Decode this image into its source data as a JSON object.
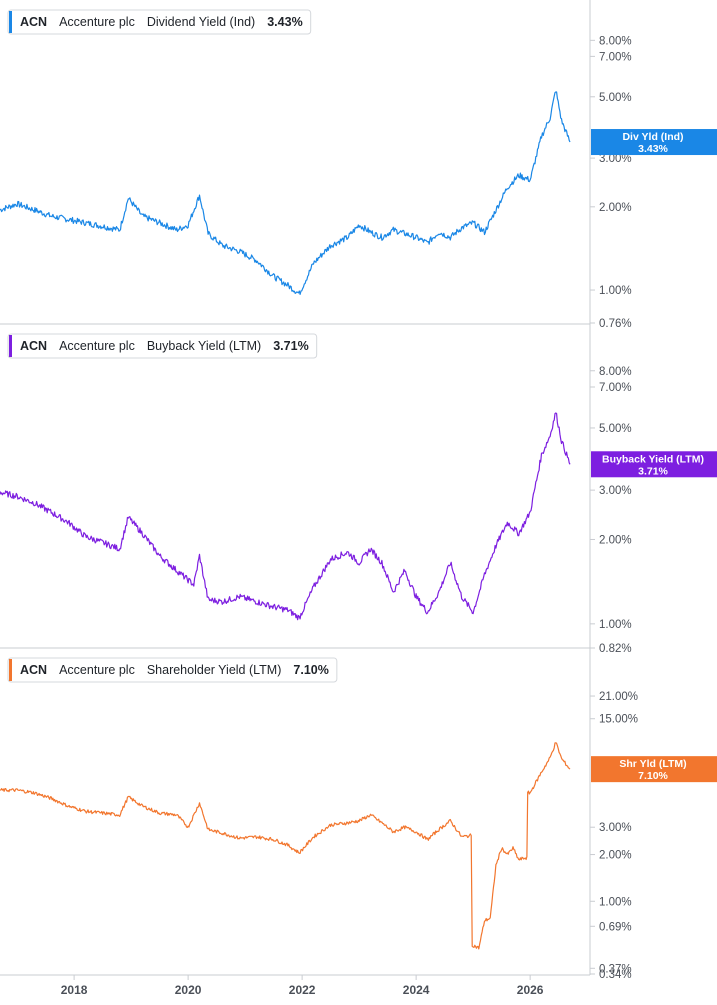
{
  "chart_data": [
    {
      "type": "line",
      "ticker": "ACN",
      "company": "Accenture plc",
      "metric": "Dividend Yield (Ind)",
      "current_value_label": "3.43%",
      "tag_label": "Div Yld (Ind)",
      "color": "#1a87e6",
      "scale": "log",
      "ylim": [
        0.76,
        10.3
      ],
      "yticks": [
        {
          "value": 8.0,
          "label": "8.00%"
        },
        {
          "value": 7.0,
          "label": "7.00%"
        },
        {
          "value": 5.0,
          "label": "5.00%"
        },
        {
          "value": 3.0,
          "label": "3.00%"
        },
        {
          "value": 2.0,
          "label": "2.00%"
        },
        {
          "value": 1.0,
          "label": "1.00%"
        },
        {
          "value": 0.76,
          "label": "0.76%"
        }
      ],
      "series": [
        {
          "name": "Dividend Yield (Ind)",
          "x": [
            2016.7,
            2017.0,
            2017.3,
            2017.6,
            2017.9,
            2018.2,
            2018.5,
            2018.8,
            2018.95,
            2019.2,
            2019.5,
            2019.8,
            2020.0,
            2020.2,
            2020.35,
            2020.6,
            2020.9,
            2021.2,
            2021.5,
            2021.75,
            2021.95,
            2022.2,
            2022.5,
            2022.8,
            2023.0,
            2023.2,
            2023.4,
            2023.6,
            2023.8,
            2024.0,
            2024.2,
            2024.4,
            2024.6,
            2024.8,
            2025.0,
            2025.2,
            2025.4,
            2025.6,
            2025.8,
            2026.0,
            2026.2,
            2026.35,
            2026.45,
            2026.55,
            2026.7
          ],
          "values": [
            1.95,
            2.05,
            1.95,
            1.85,
            1.8,
            1.75,
            1.7,
            1.65,
            2.15,
            1.85,
            1.75,
            1.65,
            1.72,
            2.2,
            1.6,
            1.45,
            1.38,
            1.28,
            1.12,
            1.04,
            0.97,
            1.25,
            1.45,
            1.55,
            1.72,
            1.62,
            1.55,
            1.65,
            1.6,
            1.55,
            1.48,
            1.62,
            1.55,
            1.68,
            1.75,
            1.62,
            1.95,
            2.35,
            2.6,
            2.5,
            3.6,
            4.2,
            5.3,
            4.1,
            3.43
          ]
        }
      ]
    },
    {
      "type": "line",
      "ticker": "ACN",
      "company": "Accenture plc",
      "metric": "Buyback Yield (LTM)",
      "current_value_label": "3.71%",
      "tag_label": "Buyback Yield (LTM)",
      "color": "#7d1fe0",
      "scale": "log",
      "ylim": [
        0.82,
        10.3
      ],
      "yticks": [
        {
          "value": 8.0,
          "label": "8.00%"
        },
        {
          "value": 7.0,
          "label": "7.00%"
        },
        {
          "value": 5.0,
          "label": "5.00%"
        },
        {
          "value": 3.0,
          "label": "3.00%"
        },
        {
          "value": 2.0,
          "label": "2.00%"
        },
        {
          "value": 1.0,
          "label": "1.00%"
        },
        {
          "value": 0.82,
          "label": "0.82%"
        }
      ],
      "series": [
        {
          "name": "Buyback Yield (LTM)",
          "x": [
            2016.7,
            2017.0,
            2017.3,
            2017.6,
            2017.9,
            2018.2,
            2018.5,
            2018.8,
            2018.95,
            2019.2,
            2019.5,
            2019.8,
            2020.1,
            2020.2,
            2020.35,
            2020.6,
            2020.9,
            2021.2,
            2021.5,
            2021.75,
            2021.95,
            2022.2,
            2022.5,
            2022.8,
            2023.0,
            2023.2,
            2023.4,
            2023.6,
            2023.8,
            2024.0,
            2024.2,
            2024.4,
            2024.6,
            2024.8,
            2025.0,
            2025.2,
            2025.4,
            2025.6,
            2025.8,
            2026.0,
            2026.2,
            2026.35,
            2026.45,
            2026.55,
            2026.7
          ],
          "values": [
            2.95,
            2.85,
            2.7,
            2.5,
            2.3,
            2.05,
            1.95,
            1.85,
            2.4,
            2.1,
            1.75,
            1.55,
            1.38,
            1.75,
            1.22,
            1.2,
            1.25,
            1.2,
            1.15,
            1.12,
            1.05,
            1.35,
            1.7,
            1.8,
            1.65,
            1.85,
            1.65,
            1.3,
            1.55,
            1.25,
            1.1,
            1.3,
            1.65,
            1.25,
            1.1,
            1.5,
            1.9,
            2.3,
            2.1,
            2.5,
            4.0,
            4.7,
            5.7,
            4.5,
            3.71
          ]
        }
      ]
    },
    {
      "type": "line",
      "ticker": "ACN",
      "company": "Accenture plc",
      "metric": "Shareholder Yield (LTM)",
      "current_value_label": "7.10%",
      "tag_label": "Shr Yld (LTM)",
      "color": "#f2762e",
      "scale": "log",
      "ylim": [
        0.34,
        30
      ],
      "yticks": [
        {
          "value": 21.0,
          "label": "21.00%"
        },
        {
          "value": 15.0,
          "label": "15.00%"
        },
        {
          "value": 3.0,
          "label": "3.00%"
        },
        {
          "value": 2.0,
          "label": "2.00%"
        },
        {
          "value": 1.0,
          "label": "1.00%"
        },
        {
          "value": 0.69,
          "label": "0.69%"
        },
        {
          "value": 0.37,
          "label": "0.37%"
        },
        {
          "value": 0.34,
          "label": "0.34%"
        }
      ],
      "series": [
        {
          "name": "Shareholder Yield (LTM)",
          "x": [
            2016.7,
            2017.0,
            2017.3,
            2017.6,
            2017.9,
            2018.2,
            2018.5,
            2018.8,
            2018.95,
            2019.2,
            2019.5,
            2019.8,
            2020.0,
            2020.2,
            2020.35,
            2020.6,
            2020.9,
            2021.2,
            2021.5,
            2021.75,
            2021.95,
            2022.2,
            2022.5,
            2022.8,
            2023.0,
            2023.2,
            2023.4,
            2023.6,
            2023.8,
            2024.0,
            2024.2,
            2024.4,
            2024.6,
            2024.8,
            2024.95,
            2025.0,
            2025.1,
            2025.2,
            2025.3,
            2025.4,
            2025.5,
            2025.6,
            2025.7,
            2025.8,
            2025.9,
            2026.0,
            2026.2,
            2026.35,
            2026.45,
            2026.55,
            2026.7
          ],
          "values": [
            5.2,
            5.2,
            5.0,
            4.6,
            4.1,
            3.8,
            3.7,
            3.6,
            4.7,
            4.1,
            3.7,
            3.6,
            3.0,
            4.3,
            2.9,
            2.75,
            2.55,
            2.6,
            2.5,
            2.3,
            2.05,
            2.6,
            3.1,
            3.2,
            3.3,
            3.6,
            3.2,
            2.8,
            3.0,
            2.8,
            2.5,
            2.9,
            3.3,
            2.6,
            2.65,
            0.52,
            0.5,
            0.75,
            0.78,
            1.7,
            2.2,
            2.0,
            2.2,
            1.85,
            1.9,
            5.0,
            6.8,
            8.4,
            10.6,
            8.3,
            7.1
          ]
        }
      ]
    }
  ],
  "x_axis": {
    "xlim": [
      2016.7,
      2027.05
    ],
    "ticks": [
      {
        "value": 2018,
        "label": "2018"
      },
      {
        "value": 2020,
        "label": "2020"
      },
      {
        "value": 2022,
        "label": "2022"
      },
      {
        "value": 2024,
        "label": "2024"
      },
      {
        "value": 2026,
        "label": "2026"
      }
    ]
  }
}
